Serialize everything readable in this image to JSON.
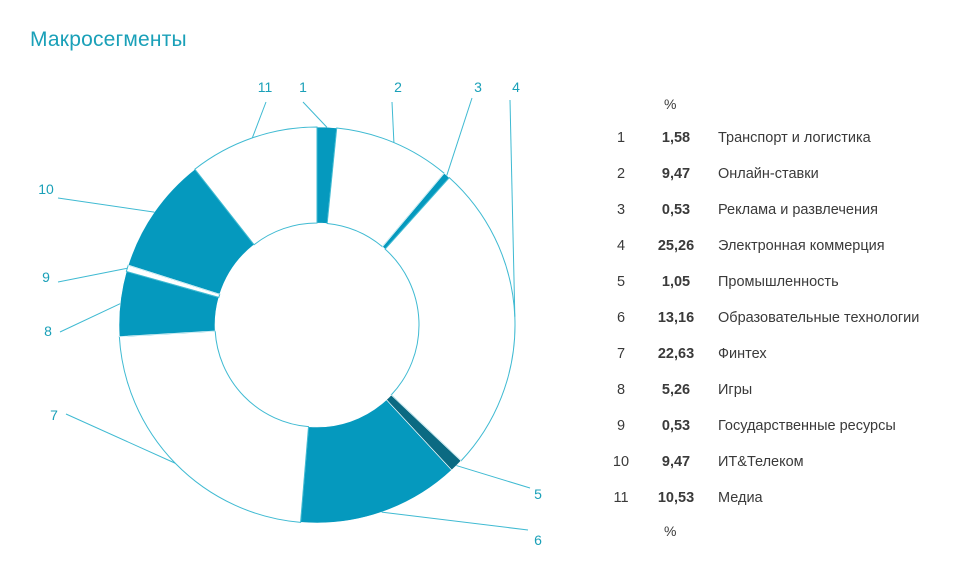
{
  "chart_data": {
    "type": "pie",
    "title": "Макросегменты",
    "unit_label": "%",
    "unit_label_bottom": "%",
    "slices": [
      {
        "id": "1",
        "value": 1.58,
        "value_text": "1,58",
        "label": "Транспорт и логистика",
        "filled": true
      },
      {
        "id": "2",
        "value": 9.47,
        "value_text": "9,47",
        "label": "Онлайн-ставки",
        "filled": false
      },
      {
        "id": "3",
        "value": 0.53,
        "value_text": "0,53",
        "label": "Реклама и развлечения",
        "filled": true
      },
      {
        "id": "4",
        "value": 25.26,
        "value_text": "25,26",
        "label": "Электронная коммерция",
        "filled": false
      },
      {
        "id": "5",
        "value": 1.05,
        "value_text": "1,05",
        "label": "Промышленность",
        "filled": true
      },
      {
        "id": "6",
        "value": 13.16,
        "value_text": "13,16",
        "label": "Образовательные технологии",
        "filled": true
      },
      {
        "id": "7",
        "value": 22.63,
        "value_text": "22,63",
        "label": "Финтех",
        "filled": false
      },
      {
        "id": "8",
        "value": 5.26,
        "value_text": "5,26",
        "label": "Игры",
        "filled": true
      },
      {
        "id": "9",
        "value": 0.53,
        "value_text": "0,53",
        "label": "Государственные ресурсы",
        "filled": false
      },
      {
        "id": "10",
        "value": 9.47,
        "value_text": "9,47",
        "label": "ИТ&Телеком",
        "filled": true
      },
      {
        "id": "11",
        "value": 10.53,
        "value_text": "10,53",
        "label": "Медиа",
        "filled": false
      }
    ],
    "colors": {
      "accent": "#0599be",
      "dark": "#0b6a82",
      "outline": "#3fbad2",
      "text": "#3a3a3a",
      "label": "#1aa0b8"
    }
  }
}
